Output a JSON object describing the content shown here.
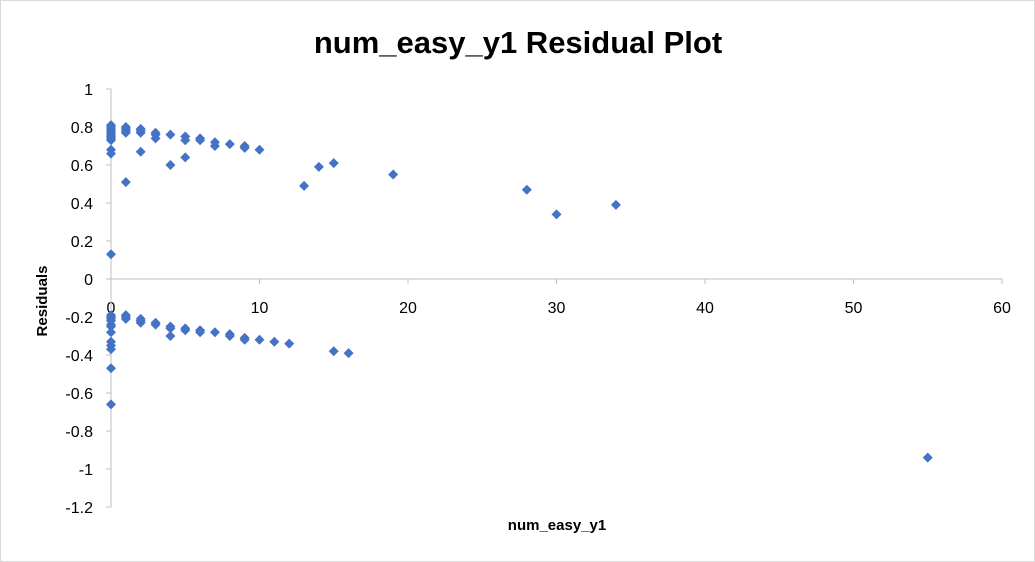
{
  "chart_data": {
    "type": "scatter",
    "title": "num_easy_y1  Residual Plot",
    "xlabel": "num_easy_y1",
    "ylabel": "Residuals",
    "xlim": [
      0,
      60
    ],
    "ylim": [
      -1.2,
      1
    ],
    "xticks": [
      "0",
      "10",
      "20",
      "30",
      "40",
      "50",
      "60"
    ],
    "yticks": [
      "1",
      "0.8",
      "0.6",
      "0.4",
      "0.2",
      "0",
      "-0.2",
      "-0.4",
      "-0.6",
      "-0.8",
      "-1",
      "-1.2"
    ],
    "grid": false,
    "legend": "none",
    "marker": "diamond",
    "color": "#4472C4",
    "points": [
      [
        0,
        0.81
      ],
      [
        0,
        0.8
      ],
      [
        0,
        0.79
      ],
      [
        0,
        0.78
      ],
      [
        0,
        0.77
      ],
      [
        0,
        0.76
      ],
      [
        0,
        0.75
      ],
      [
        0,
        0.74
      ],
      [
        0,
        0.73
      ],
      [
        0,
        0.68
      ],
      [
        0,
        0.66
      ],
      [
        0,
        0.13
      ],
      [
        0,
        -0.19
      ],
      [
        0,
        -0.2
      ],
      [
        0,
        -0.21
      ],
      [
        0,
        -0.22
      ],
      [
        0,
        -0.24
      ],
      [
        0,
        -0.25
      ],
      [
        0,
        -0.28
      ],
      [
        0,
        -0.33
      ],
      [
        0,
        -0.35
      ],
      [
        0,
        -0.37
      ],
      [
        0,
        -0.47
      ],
      [
        0,
        -0.66
      ],
      [
        1,
        0.8
      ],
      [
        1,
        0.79
      ],
      [
        1,
        0.78
      ],
      [
        1,
        0.77
      ],
      [
        1,
        0.51
      ],
      [
        1,
        -0.19
      ],
      [
        1,
        -0.2
      ],
      [
        1,
        -0.21
      ],
      [
        2,
        0.79
      ],
      [
        2,
        0.78
      ],
      [
        2,
        0.77
      ],
      [
        2,
        0.67
      ],
      [
        2,
        -0.21
      ],
      [
        2,
        -0.22
      ],
      [
        2,
        -0.23
      ],
      [
        3,
        0.77
      ],
      [
        3,
        0.76
      ],
      [
        3,
        0.74
      ],
      [
        3,
        -0.23
      ],
      [
        3,
        -0.24
      ],
      [
        4,
        0.76
      ],
      [
        4,
        0.6
      ],
      [
        4,
        -0.25
      ],
      [
        4,
        -0.26
      ],
      [
        4,
        -0.3
      ],
      [
        5,
        0.75
      ],
      [
        5,
        0.73
      ],
      [
        5,
        0.64
      ],
      [
        5,
        -0.26
      ],
      [
        5,
        -0.27
      ],
      [
        6,
        0.74
      ],
      [
        6,
        0.73
      ],
      [
        6,
        -0.27
      ],
      [
        6,
        -0.28
      ],
      [
        7,
        0.72
      ],
      [
        7,
        0.7
      ],
      [
        7,
        -0.28
      ],
      [
        8,
        0.71
      ],
      [
        8,
        -0.29
      ],
      [
        8,
        -0.3
      ],
      [
        9,
        0.7
      ],
      [
        9,
        0.69
      ],
      [
        9,
        -0.31
      ],
      [
        9,
        -0.32
      ],
      [
        10,
        0.68
      ],
      [
        10,
        -0.32
      ],
      [
        11,
        -0.33
      ],
      [
        12,
        -0.34
      ],
      [
        13,
        0.49
      ],
      [
        14,
        0.59
      ],
      [
        15,
        0.61
      ],
      [
        15,
        -0.38
      ],
      [
        16,
        -0.39
      ],
      [
        19,
        0.55
      ],
      [
        28,
        0.47
      ],
      [
        30,
        0.34
      ],
      [
        34,
        0.39
      ],
      [
        55,
        -0.94
      ]
    ]
  }
}
